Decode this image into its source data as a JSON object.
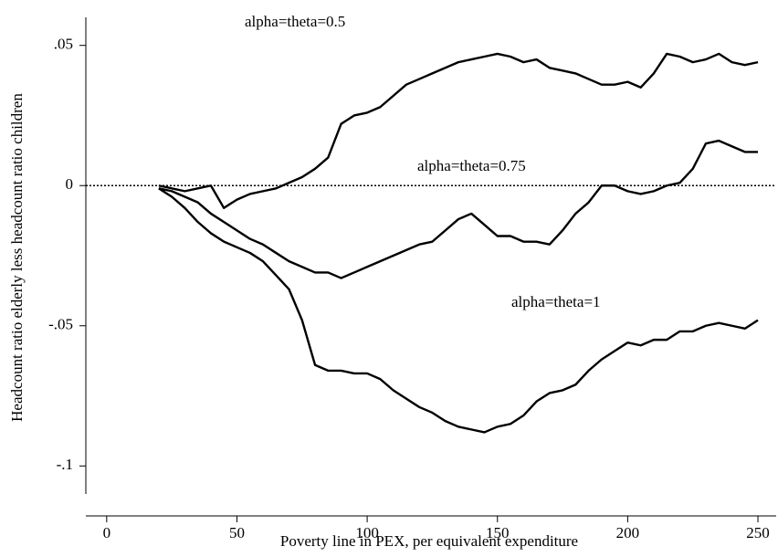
{
  "chart_data": {
    "type": "line",
    "xlabel": "Poverty line in PEX, per equivalent expenditure",
    "ylabel": "Headcount ratio elderly less headcount ratio children",
    "x": [
      20,
      25,
      30,
      35,
      40,
      45,
      50,
      55,
      60,
      65,
      70,
      75,
      80,
      85,
      90,
      95,
      100,
      105,
      110,
      115,
      120,
      125,
      130,
      135,
      140,
      145,
      150,
      155,
      160,
      165,
      170,
      175,
      180,
      185,
      190,
      195,
      200,
      205,
      210,
      215,
      220,
      225,
      230,
      235,
      240,
      245,
      250
    ],
    "series": [
      {
        "name": "alpha=theta=0.5",
        "color": "#000000",
        "values": [
          0,
          -0.001,
          -0.002,
          -0.001,
          0,
          -0.008,
          -0.005,
          -0.003,
          -0.002,
          -0.001,
          0.001,
          0.003,
          0.006,
          0.01,
          0.022,
          0.025,
          0.026,
          0.028,
          0.032,
          0.036,
          0.038,
          0.04,
          0.042,
          0.044,
          0.045,
          0.046,
          0.047,
          0.046,
          0.044,
          0.045,
          0.042,
          0.041,
          0.04,
          0.038,
          0.036,
          0.036,
          0.037,
          0.035,
          0.04,
          0.047,
          0.046,
          0.044,
          0.045,
          0.047,
          0.044,
          0.043,
          0.044
        ]
      },
      {
        "name": "alpha=theta=0.75",
        "color": "#000000",
        "values": [
          -0.001,
          -0.002,
          -0.004,
          -0.006,
          -0.01,
          -0.013,
          -0.016,
          -0.019,
          -0.021,
          -0.024,
          -0.027,
          -0.029,
          -0.031,
          -0.031,
          -0.033,
          -0.031,
          -0.029,
          -0.027,
          -0.025,
          -0.023,
          -0.021,
          -0.02,
          -0.016,
          -0.012,
          -0.01,
          -0.014,
          -0.018,
          -0.018,
          -0.02,
          -0.02,
          -0.021,
          -0.016,
          -0.01,
          -0.006,
          0,
          0,
          -0.002,
          -0.003,
          -0.002,
          0,
          0.001,
          0.006,
          0.015,
          0.016,
          0.014,
          0.012,
          0.012
        ]
      },
      {
        "name": "alpha=theta=1",
        "color": "#000000",
        "values": [
          -0.001,
          -0.004,
          -0.008,
          -0.013,
          -0.017,
          -0.02,
          -0.022,
          -0.024,
          -0.027,
          -0.032,
          -0.037,
          -0.048,
          -0.064,
          -0.066,
          -0.066,
          -0.067,
          -0.067,
          -0.069,
          -0.073,
          -0.076,
          -0.079,
          -0.081,
          -0.084,
          -0.086,
          -0.087,
          -0.088,
          -0.086,
          -0.085,
          -0.082,
          -0.077,
          -0.074,
          -0.073,
          -0.071,
          -0.066,
          -0.062,
          -0.059,
          -0.056,
          -0.057,
          -0.055,
          -0.055,
          -0.052,
          -0.052,
          -0.05,
          -0.049,
          -0.05,
          -0.051,
          -0.048
        ]
      }
    ],
    "hline": 0,
    "xlim": [
      -8,
      257
    ],
    "ylim": [
      -0.11,
      0.06
    ],
    "xticks": [
      0,
      50,
      100,
      150,
      200,
      250
    ],
    "yticks": [
      {
        "value": 0.05,
        "label": ".05"
      },
      0,
      {
        "value": -0.05,
        "label": "-.05"
      },
      {
        "value": -0.1,
        "label": "-.1"
      }
    ]
  }
}
